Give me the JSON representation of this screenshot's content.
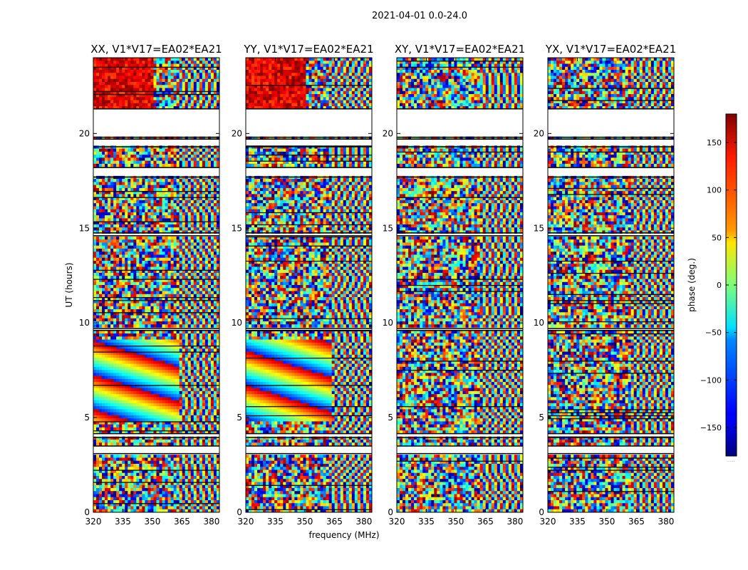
{
  "figure": {
    "suptitle": "2021-04-01 0.0-24.0",
    "xlabel": "frequency (MHz)",
    "ylabel": "UT (hours)",
    "colorbar_label": "phase (deg.)",
    "colorbar_footer": "......"
  },
  "chart_data": {
    "type": "heatmap",
    "xlim": [
      320,
      384
    ],
    "ylim": [
      0,
      24
    ],
    "x_ticks": [
      320,
      335,
      350,
      365,
      380
    ],
    "y_ticks": [
      0,
      5,
      10,
      15,
      20
    ],
    "colorbar": {
      "range": [
        -180,
        180
      ],
      "ticks": [
        -150,
        -100,
        -50,
        0,
        50,
        100,
        150
      ],
      "colormap": "jet"
    },
    "flagged_gaps_hours": [
      [
        17.7,
        18.2
      ],
      [
        19.3,
        19.7
      ],
      [
        19.8,
        21.3
      ],
      [
        3.1,
        3.5
      ],
      [
        3.95,
        4.15
      ],
      [
        9.6,
        9.7
      ],
      [
        14.6,
        14.75
      ]
    ],
    "panels": [
      {
        "title": "XX, V1*V17=EA02*EA21",
        "pattern": "parallel"
      },
      {
        "title": "YY, V1*V17=EA02*EA21",
        "pattern": "parallel"
      },
      {
        "title": "XY, V1*V17=EA02*EA21",
        "pattern": "cross"
      },
      {
        "title": "YX, V1*V17=EA02*EA21",
        "pattern": "cross"
      }
    ]
  }
}
